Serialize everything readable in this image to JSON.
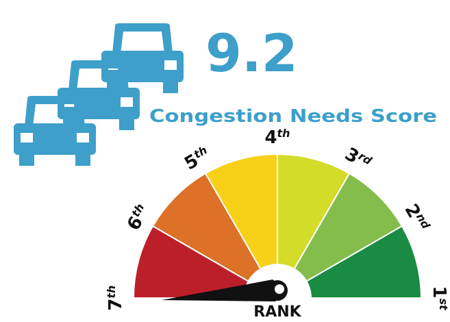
{
  "score": "9.2",
  "score_label": "Congestion Needs Score",
  "gauge": {
    "ranks": [
      {
        "number": "7",
        "suffix": "th"
      },
      {
        "number": "6",
        "suffix": "th"
      },
      {
        "number": "5",
        "suffix": "th"
      },
      {
        "number": "4",
        "suffix": "th"
      },
      {
        "number": "3",
        "suffix": "rd"
      },
      {
        "number": "2",
        "suffix": "nd"
      },
      {
        "number": "1",
        "suffix": "st"
      }
    ],
    "segment_colors": [
      "#bc1f2a",
      "#dc7127",
      "#f7d117",
      "#d4dc2a",
      "#84bd4b",
      "#1a8b43"
    ]
  },
  "rank_label": "RANK"
}
